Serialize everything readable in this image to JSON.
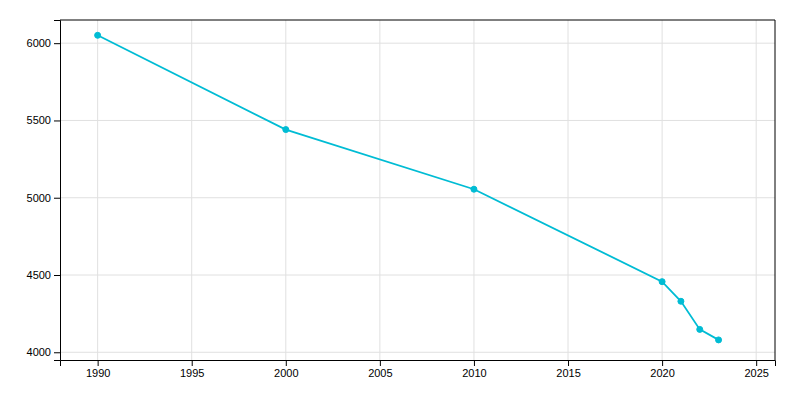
{
  "chart_data": {
    "type": "line",
    "x": [
      1990,
      2000,
      2010,
      2020,
      2021,
      2022,
      2023
    ],
    "values": [
      6051,
      5441,
      5055,
      4457,
      4330,
      4148,
      4080
    ],
    "color": "#00BCD4",
    "marker": "circle",
    "xlim": [
      1988,
      2026
    ],
    "ylim": [
      3950,
      6150
    ],
    "xticks": [
      1990,
      1995,
      2000,
      2005,
      2010,
      2015,
      2020,
      2025
    ],
    "yticks": [
      4000,
      4500,
      5000,
      5500,
      6000
    ],
    "grid": true
  }
}
